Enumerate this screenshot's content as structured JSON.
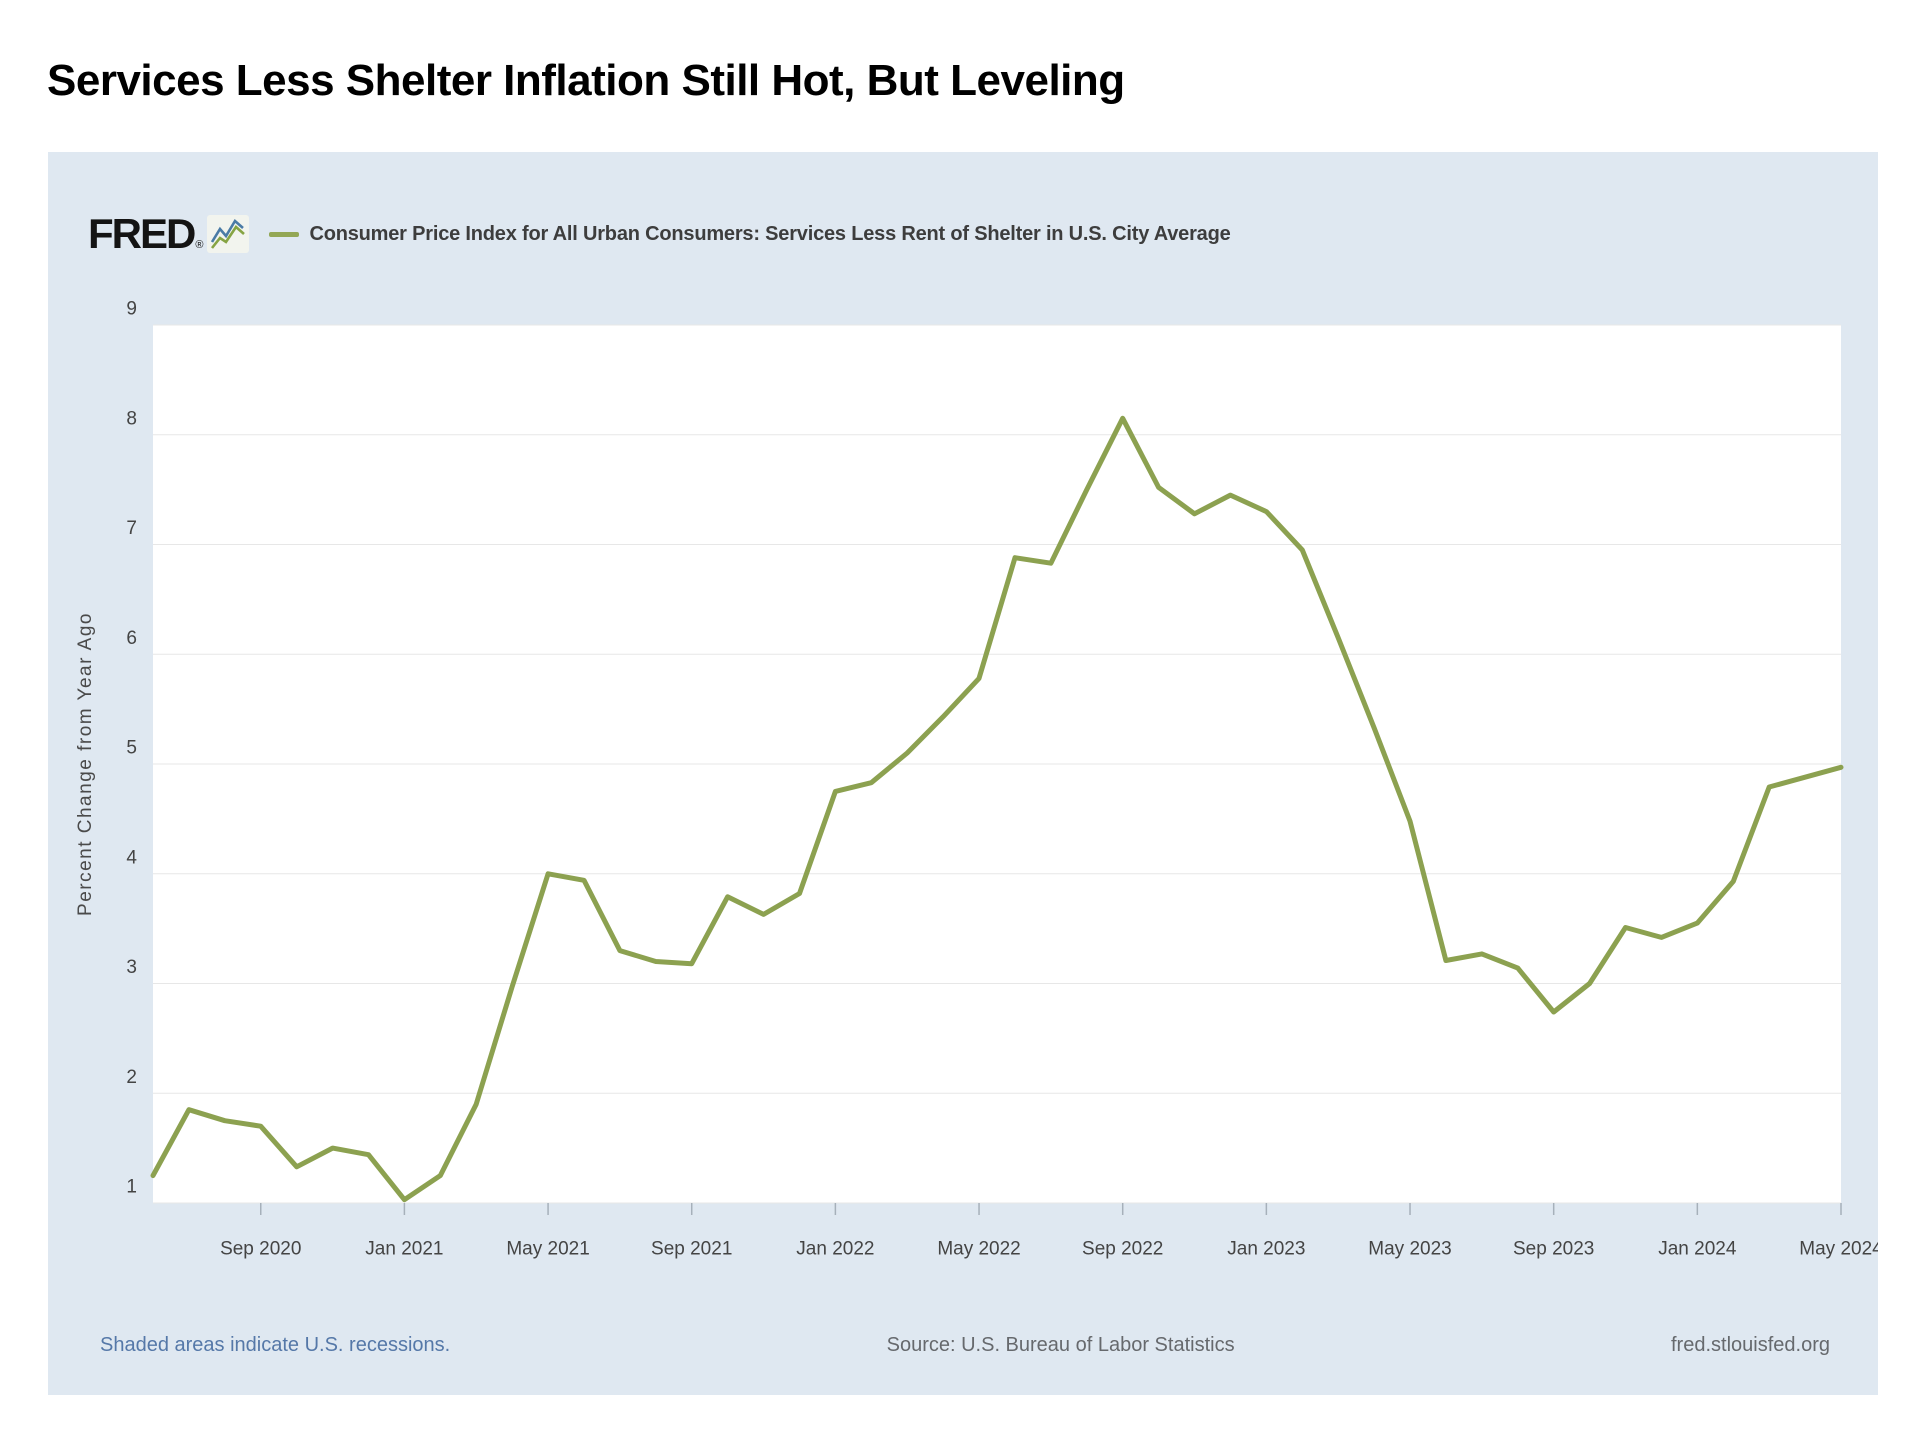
{
  "page": {
    "title": "Services Less Shelter Inflation Still Hot, But Leveling"
  },
  "header": {
    "logo_text": "FRED",
    "registered_mark": "®",
    "legend_label": "Consumer Price Index for All Urban Consumers: Services Less Rent of Shelter in U.S. City Average"
  },
  "footer": {
    "left": "Shaded areas indicate U.S. recessions.",
    "center": "Source: U.S. Bureau of Labor Statistics",
    "right": "fred.stlouisfed.org"
  },
  "colors": {
    "series_line": "#8ca150",
    "legend_dash": "#93a755",
    "container_background": "#dfe8f1",
    "plot_background": "#ffffff",
    "gridline": "#e7e7e7",
    "axis_text": "#444444",
    "tick_mark": "#a6b0ba",
    "footer_link_blue": "#5578a8",
    "footer_gray": "#66696d",
    "logo_black": "#141414"
  },
  "chart_data": {
    "type": "line",
    "title": "Consumer Price Index for All Urban Consumers: Services Less Rent of Shelter in U.S. City Average",
    "xlabel": "",
    "ylabel": "Percent Change from Year Ago",
    "ylim": [
      1,
      9
    ],
    "y_ticks": [
      1,
      2,
      3,
      4,
      5,
      6,
      7,
      8,
      9
    ],
    "grid": true,
    "legend_position": "top",
    "series_color": "#8ca150",
    "x": [
      "Jun 2020",
      "Jul 2020",
      "Aug 2020",
      "Sep 2020",
      "Oct 2020",
      "Nov 2020",
      "Dec 2020",
      "Jan 2021",
      "Feb 2021",
      "Mar 2021",
      "Apr 2021",
      "May 2021",
      "Jun 2021",
      "Jul 2021",
      "Aug 2021",
      "Sep 2021",
      "Oct 2021",
      "Nov 2021",
      "Dec 2021",
      "Jan 2022",
      "Feb 2022",
      "Mar 2022",
      "Apr 2022",
      "May 2022",
      "Jun 2022",
      "Jul 2022",
      "Aug 2022",
      "Sep 2022",
      "Oct 2022",
      "Nov 2022",
      "Dec 2022",
      "Jan 2023",
      "Feb 2023",
      "Mar 2023",
      "Apr 2023",
      "May 2023",
      "Jun 2023",
      "Jul 2023",
      "Aug 2023",
      "Sep 2023",
      "Oct 2023",
      "Nov 2023",
      "Dec 2023",
      "Jan 2024",
      "Feb 2024",
      "Mar 2024",
      "Apr 2024",
      "May 2024"
    ],
    "values": [
      1.25,
      1.85,
      1.75,
      1.7,
      1.33,
      1.5,
      1.44,
      1.03,
      1.25,
      1.9,
      2.97,
      4.0,
      3.94,
      3.3,
      3.2,
      3.18,
      3.79,
      3.63,
      3.82,
      4.75,
      4.83,
      5.1,
      5.43,
      5.78,
      6.88,
      6.83,
      7.5,
      8.15,
      7.52,
      7.28,
      7.45,
      7.3,
      6.95,
      6.15,
      5.33,
      4.48,
      3.21,
      3.27,
      3.14,
      2.74,
      3.0,
      3.51,
      3.42,
      3.55,
      3.93,
      4.79,
      4.88,
      4.97
    ],
    "x_tick_labels": [
      "Sep 2020",
      "Jan 2021",
      "May 2021",
      "Sep 2021",
      "Jan 2022",
      "May 2022",
      "Sep 2022",
      "Jan 2023",
      "May 2023",
      "Sep 2023",
      "Jan 2024",
      "May 2024"
    ],
    "x_tick_indices": [
      3,
      7,
      11,
      15,
      19,
      23,
      27,
      31,
      35,
      39,
      43,
      47
    ]
  }
}
